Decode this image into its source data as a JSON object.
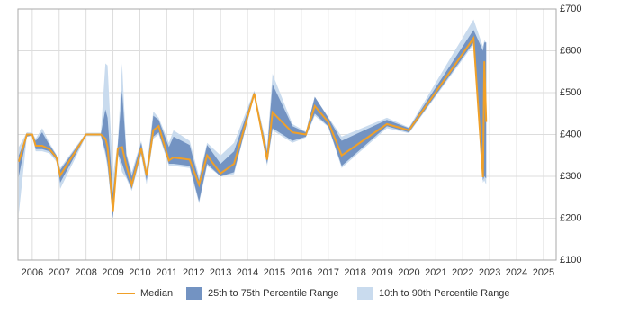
{
  "chart_data": {
    "type": "range-line",
    "x": [
      2005.5,
      2005.8,
      2006.0,
      2006.13,
      2006.37,
      2006.64,
      2006.9,
      2007.04,
      2008.0,
      2008.55,
      2008.72,
      2008.8,
      2009.0,
      2009.18,
      2009.34,
      2009.5,
      2009.7,
      2010.05,
      2010.25,
      2010.5,
      2010.7,
      2011.08,
      2011.25,
      2011.85,
      2012.2,
      2012.5,
      2013.0,
      2013.5,
      2014.25,
      2014.73,
      2014.93,
      2015.67,
      2016.17,
      2016.5,
      2017.0,
      2017.5,
      2019.18,
      2020.0,
      2022.4,
      2022.75,
      2022.8,
      2022.87
    ],
    "series": [
      {
        "name": "Median",
        "color": "#f0a028",
        "values": [
          335,
          400,
          400,
          373,
          373,
          365,
          345,
          302,
          400,
          400,
          390,
          370,
          215,
          367,
          370,
          325,
          280,
          367,
          302,
          410,
          420,
          338,
          345,
          340,
          280,
          350,
          307,
          330,
          498,
          340,
          453,
          405,
          400,
          468,
          430,
          350,
          425,
          410,
          630,
          298,
          575,
          430
        ]
      },
      {
        "name": "25th to 75th Percentile Range",
        "color": "#7393c2",
        "low": [
          300,
          395,
          398,
          365,
          365,
          360,
          340,
          285,
          398,
          398,
          360,
          330,
          200,
          355,
          330,
          300,
          270,
          355,
          290,
          395,
          405,
          330,
          330,
          325,
          240,
          330,
          300,
          310,
          495,
          330,
          415,
          385,
          395,
          450,
          420,
          325,
          420,
          405,
          620,
          290,
          300,
          295
        ],
        "high": [
          350,
          400,
          402,
          385,
          405,
          375,
          350,
          315,
          402,
          402,
          460,
          440,
          260,
          375,
          505,
          350,
          300,
          380,
          310,
          445,
          435,
          370,
          395,
          375,
          290,
          375,
          330,
          360,
          502,
          360,
          520,
          420,
          405,
          490,
          440,
          385,
          435,
          415,
          650,
          600,
          620,
          620
        ]
      },
      {
        "name": "10th to 90th Percentile Range",
        "color": "#c9dbee",
        "low": [
          210,
          395,
          396,
          360,
          360,
          355,
          335,
          270,
          396,
          396,
          350,
          320,
          200,
          350,
          310,
          295,
          265,
          350,
          280,
          390,
          400,
          325,
          325,
          320,
          235,
          325,
          300,
          305,
          493,
          325,
          410,
          380,
          393,
          445,
          418,
          320,
          415,
          403,
          615,
          285,
          290,
          280
        ],
        "high": [
          370,
          405,
          404,
          390,
          415,
          380,
          352,
          320,
          404,
          404,
          570,
          565,
          300,
          380,
          570,
          355,
          310,
          385,
          320,
          455,
          440,
          380,
          410,
          385,
          300,
          380,
          350,
          380,
          505,
          370,
          545,
          425,
          407,
          490,
          442,
          395,
          440,
          417,
          675,
          610,
          625,
          620
        ]
      }
    ],
    "xlim": [
      2005.47,
      2025.47
    ],
    "xticks": [
      2006,
      2007,
      2008,
      2009,
      2010,
      2011,
      2012,
      2013,
      2014,
      2015,
      2016,
      2017,
      2018,
      2019,
      2020,
      2021,
      2022,
      2023,
      2024,
      2025
    ],
    "ylim": [
      100,
      700
    ],
    "yticks": [
      {
        "value": 100,
        "label": "£100"
      },
      {
        "value": 200,
        "label": "£200"
      },
      {
        "value": 300,
        "label": "£300"
      },
      {
        "value": 400,
        "label": "£400"
      },
      {
        "value": 500,
        "label": "£500"
      },
      {
        "value": 600,
        "label": "£600"
      },
      {
        "value": 700,
        "label": "£700"
      }
    ],
    "grid": true
  }
}
